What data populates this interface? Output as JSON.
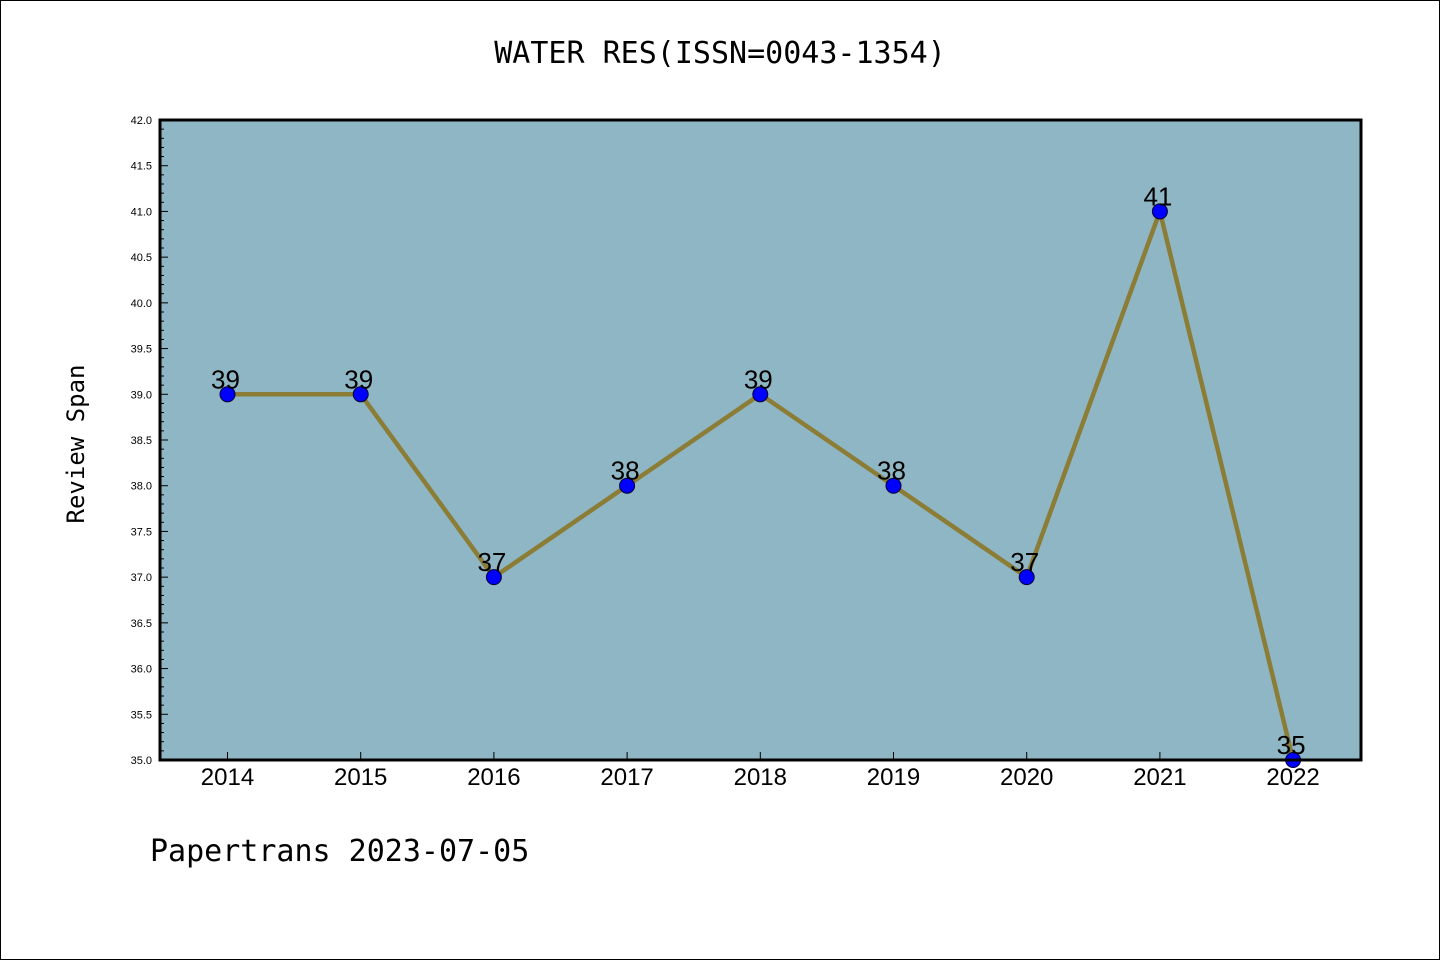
{
  "page": {
    "footer": "Papertrans 2023-07-05"
  },
  "chart_data": {
    "type": "line",
    "title": "WATER RES(ISSN=0043-1354)",
    "xlabel": "",
    "ylabel": "Review Span",
    "categories": [
      "2014",
      "2015",
      "2016",
      "2017",
      "2018",
      "2019",
      "2020",
      "2021",
      "2022"
    ],
    "series": [
      {
        "values": [
          39,
          39,
          37,
          38,
          39,
          38,
          37,
          41,
          35
        ],
        "data_labels": [
          "39",
          "39",
          "37",
          "38",
          "39",
          "38",
          "37",
          "41",
          "35"
        ]
      }
    ],
    "ylim": [
      35.0,
      42.0
    ],
    "yticks": [
      "35.0",
      "35.5",
      "36.0",
      "36.5",
      "37.0",
      "37.5",
      "38.0",
      "38.5",
      "39.0",
      "39.5",
      "40.0",
      "40.5",
      "41.0",
      "41.5",
      "42.0"
    ],
    "grid": false,
    "legend": "none",
    "colors": {
      "plot_background": "#8fb6c4",
      "line": "#8b7d36",
      "marker": "#0000ff"
    }
  }
}
